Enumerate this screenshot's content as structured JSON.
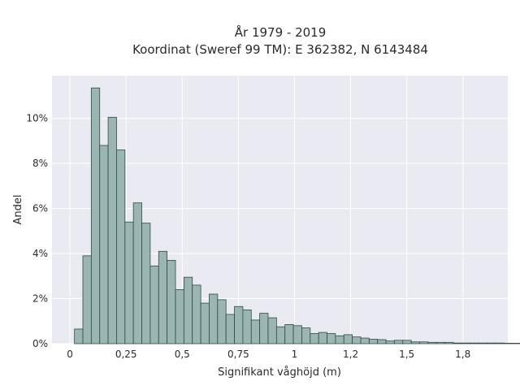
{
  "chart_data": {
    "type": "bar",
    "title_line1": "År 1979 - 2019",
    "title_line2": "Koordinat (Sweref 99 TM): E 362382, N 6143484",
    "xlabel": "Signifikant våghöjd (m)",
    "ylabel": "Andel",
    "x_ticks": [
      0,
      0.25,
      0.5,
      0.75,
      1,
      1.25,
      1.5,
      1.75
    ],
    "x_tick_labels": [
      "0",
      "0,25",
      "0,5",
      "0,75",
      "1",
      "1,2",
      "1,5",
      "1,8"
    ],
    "y_ticks": [
      0,
      2,
      4,
      6,
      8,
      10
    ],
    "y_tick_labels": [
      "0%",
      "2%",
      "4%",
      "6%",
      "8%",
      "10%"
    ],
    "xlim": [
      -0.08,
      1.95
    ],
    "ylim": [
      0,
      11.9
    ],
    "bin_start": 0.02,
    "bin_width": 0.0375,
    "values": [
      0.65,
      3.9,
      11.35,
      8.8,
      10.05,
      8.6,
      5.4,
      6.25,
      5.35,
      3.45,
      4.1,
      3.7,
      2.4,
      2.95,
      2.6,
      1.8,
      2.2,
      1.95,
      1.3,
      1.65,
      1.5,
      1.05,
      1.35,
      1.15,
      0.75,
      0.85,
      0.8,
      0.7,
      0.45,
      0.5,
      0.45,
      0.35,
      0.4,
      0.3,
      0.25,
      0.2,
      0.18,
      0.12,
      0.15,
      0.15,
      0.08,
      0.08,
      0.06,
      0.06,
      0.06,
      0.03,
      0.03,
      0.03,
      0.03,
      0.03,
      0.03,
      0.02,
      0.02,
      0.02
    ],
    "colors": {
      "bar_fill": "#9bb5b3",
      "bar_edge": "#2f4a47",
      "plot_bg": "#eaeaf2",
      "grid": "#ffffff"
    },
    "grid": true
  }
}
